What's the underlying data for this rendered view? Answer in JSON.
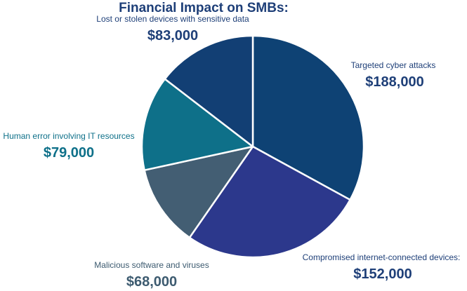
{
  "chart_data": {
    "type": "pie",
    "title": "Financial Impact on SMBs:",
    "categories": [
      "Targeted cyber attacks",
      "Compromised internet-connected devices:",
      "Malicious software and viruses",
      "Human error involving IT resources",
      "Lost or stolen devices with sensitive data"
    ],
    "values": [
      188000,
      152000,
      68000,
      79000,
      83000
    ],
    "value_labels": [
      "$188,000",
      "$152,000",
      "$68,000",
      "$79,000",
      "$83,000"
    ],
    "colors": [
      "#0e4274",
      "#2c388c",
      "#435e73",
      "#0e7089",
      "#123f74"
    ],
    "label_colors": {
      "Targeted cyber attacks": "#1e3f78",
      "Compromised internet-connected devices:": "#1e3f78",
      "Malicious software and viruses": "#3d5b70",
      "Human error involving IT resources": "#0e7089",
      "Lost or stolen devices with sensitive data": "#1e3f78"
    },
    "title_color": "#1e3f78",
    "start": "top, clockwise",
    "legend": "none"
  }
}
